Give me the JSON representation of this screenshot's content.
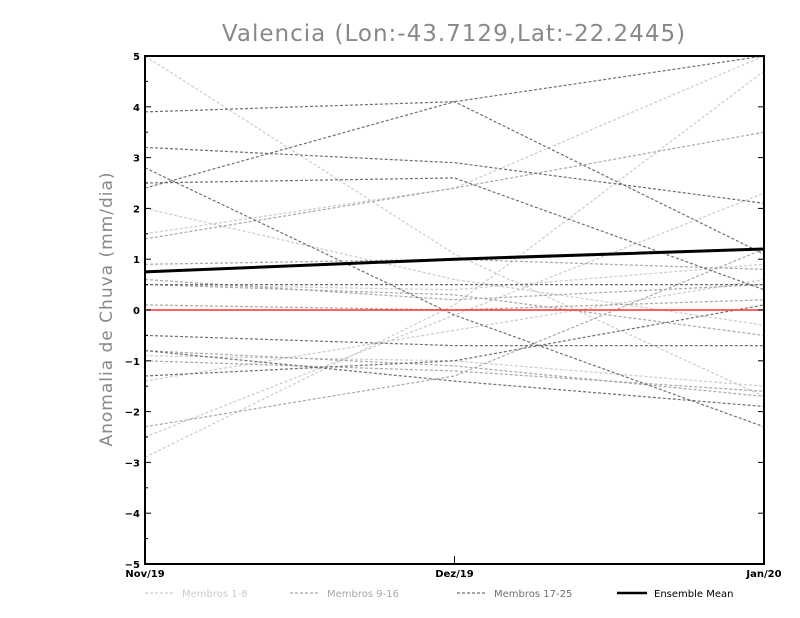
{
  "chart_data": {
    "type": "line",
    "title": "Valencia (Lon:-43.7129,Lat:-22.2445)",
    "ylabel": "Anomalia de Chuva (mm/dia)",
    "xlabel": "",
    "categories": [
      "Nov/19",
      "Dez/19",
      "Jan/20"
    ],
    "ylim": [
      -5,
      5
    ],
    "yticks": [
      -5,
      -4,
      -3,
      -2,
      -1,
      0,
      1,
      2,
      3,
      4,
      5
    ],
    "grid": false,
    "legend_position": "bottom",
    "zero_line_color": "#ff3333",
    "legend": [
      {
        "label": "Membros 1-8",
        "color": "#cccccc",
        "dash": true
      },
      {
        "label": "Membros 9-16",
        "color": "#a8a8a8",
        "dash": true
      },
      {
        "label": "Membros 17-25",
        "color": "#707070",
        "dash": true
      },
      {
        "label": "Ensemble Mean",
        "color": "#000000",
        "dash": false
      }
    ],
    "groups": [
      {
        "color": "#cccccc",
        "series": [
          [
            5.0,
            1.1,
            -1.7
          ],
          [
            2.0,
            0.6,
            -0.3
          ],
          [
            -1.4,
            -0.4,
            0.6
          ],
          [
            -2.5,
            -0.1,
            2.3
          ],
          [
            -2.9,
            0.1,
            4.7
          ],
          [
            0.5,
            0.4,
            0.9
          ],
          [
            -0.9,
            -1.0,
            -1.5
          ],
          [
            1.5,
            2.4,
            5.0
          ]
        ]
      },
      {
        "color": "#a8a8a8",
        "series": [
          [
            1.4,
            2.4,
            3.5
          ],
          [
            0.1,
            0.0,
            0.2
          ],
          [
            -1.0,
            -1.2,
            -1.6
          ],
          [
            -2.3,
            -1.3,
            1.2
          ],
          [
            0.9,
            1.0,
            0.8
          ],
          [
            0.5,
            0.3,
            -0.5
          ],
          [
            -0.8,
            -1.1,
            -1.7
          ],
          [
            0.6,
            0.2,
            0.5
          ]
        ]
      },
      {
        "color": "#707070",
        "series": [
          [
            3.9,
            4.1,
            5.0
          ],
          [
            2.4,
            4.1,
            1.1
          ],
          [
            2.8,
            -0.1,
            -2.3
          ],
          [
            3.2,
            2.9,
            2.1
          ],
          [
            2.5,
            2.6,
            0.4
          ],
          [
            -0.5,
            -0.7,
            -0.7
          ],
          [
            -1.3,
            -1.0,
            0.1
          ],
          [
            -0.8,
            -1.4,
            -1.9
          ],
          [
            0.5,
            0.5,
            0.5
          ]
        ]
      }
    ],
    "ensemble_mean": [
      0.75,
      1.0,
      1.2
    ]
  }
}
